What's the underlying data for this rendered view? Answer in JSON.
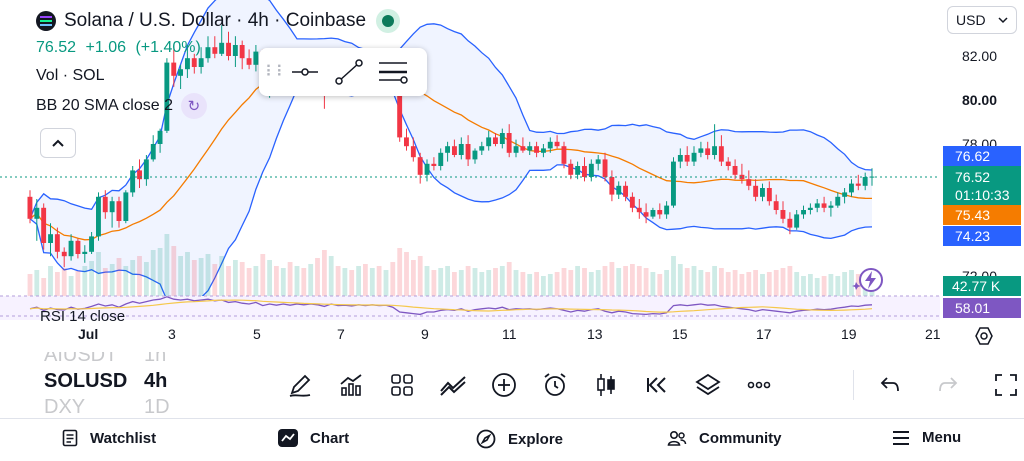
{
  "header": {
    "title": "Solana / U.S. Dollar · 4h · Coinbase",
    "last_price": "76.52",
    "change": "+1.06",
    "change_pct": "(+1.40%)",
    "volume_label": "Vol · SOL",
    "bb_label": "BB 20 SMA close 2"
  },
  "currency_select": {
    "value": "USD"
  },
  "price_axis": {
    "labels": [
      "82.00",
      "80.00",
      "78.00",
      "72.00"
    ],
    "tags": {
      "bb_upper": "76.62",
      "last": "76.52",
      "countdown": "01:10:33",
      "bb_basis": "75.43",
      "bb_lower": "74.23",
      "volume": "42.77 K",
      "rsi": "58.01"
    }
  },
  "rsi": {
    "label": "RSI 14 close"
  },
  "x_axis": {
    "labels": [
      "Jul",
      "3",
      "5",
      "7",
      "9",
      "11",
      "13",
      "15",
      "17",
      "19",
      "21"
    ]
  },
  "symbols": [
    {
      "symbol": "AIUSDT",
      "interval": "1h",
      "state": "dim"
    },
    {
      "symbol": "SOLUSD",
      "interval": "4h",
      "state": "active"
    },
    {
      "symbol": "DXY",
      "interval": "1D",
      "state": "dim"
    }
  ],
  "toolbar_icons": [
    "pencil-icon",
    "indicators-icon",
    "layout-grid-icon",
    "compare-icon",
    "add-icon",
    "alarm-icon",
    "candles-icon",
    "replay-icon",
    "layers-icon",
    "more-icon"
  ],
  "nav": {
    "watchlist": "Watchlist",
    "chart": "Chart",
    "explore": "Explore",
    "community": "Community",
    "menu": "Menu"
  },
  "colors": {
    "up": "#089981",
    "down": "#f23645",
    "bb_band": "#2962ff",
    "bb_basis": "#f57c00",
    "rsi": "#7e57c2"
  },
  "chart_data": {
    "type": "candlestick",
    "symbol": "SOLUSD",
    "interval": "4h",
    "candles": [
      [
        75.6,
        75.9,
        74.4,
        74.6
      ],
      [
        74.6,
        75.5,
        73.6,
        75.1
      ],
      [
        75.1,
        75.3,
        73.2,
        73.5
      ],
      [
        73.5,
        74.4,
        72.9,
        73.9
      ],
      [
        73.9,
        74.2,
        72.8,
        73.1
      ],
      [
        73.1,
        73.3,
        72.4,
        72.9
      ],
      [
        72.9,
        73.9,
        72.7,
        73.6
      ],
      [
        73.6,
        73.7,
        72.8,
        73.0
      ],
      [
        73.0,
        73.4,
        72.6,
        73.1
      ],
      [
        73.1,
        74.0,
        73.0,
        73.8
      ],
      [
        73.8,
        75.8,
        73.6,
        75.6
      ],
      [
        75.6,
        75.9,
        74.6,
        74.9
      ],
      [
        74.9,
        75.6,
        74.2,
        75.4
      ],
      [
        75.4,
        75.6,
        74.2,
        74.5
      ],
      [
        74.5,
        75.9,
        74.4,
        75.8
      ],
      [
        75.8,
        77.0,
        75.6,
        76.8
      ],
      [
        76.8,
        77.3,
        76.0,
        76.4
      ],
      [
        76.4,
        77.5,
        76.1,
        77.3
      ],
      [
        77.3,
        78.4,
        77.2,
        78.0
      ],
      [
        78.0,
        78.7,
        77.6,
        78.6
      ],
      [
        78.6,
        81.9,
        78.5,
        81.7
      ],
      [
        81.7,
        82.3,
        80.6,
        81.1
      ],
      [
        81.1,
        81.6,
        80.5,
        81.4
      ],
      [
        81.4,
        82.5,
        81.0,
        81.9
      ],
      [
        81.9,
        82.1,
        81.2,
        81.5
      ],
      [
        81.5,
        82.4,
        81.2,
        81.9
      ],
      [
        81.9,
        82.9,
        81.7,
        82.4
      ],
      [
        82.4,
        82.9,
        81.9,
        82.1
      ],
      [
        82.1,
        83.4,
        82.0,
        82.6
      ],
      [
        82.6,
        83.1,
        81.8,
        82.0
      ],
      [
        82.0,
        82.9,
        81.5,
        82.5
      ],
      [
        82.5,
        82.7,
        81.4,
        81.9
      ],
      [
        81.9,
        82.3,
        81.4,
        81.6
      ],
      [
        81.6,
        82.5,
        81.3,
        82.2
      ],
      [
        82.2,
        82.3,
        80.4,
        80.6
      ],
      [
        80.6,
        81.4,
        80.1,
        81.3
      ],
      [
        81.3,
        81.6,
        80.5,
        80.7
      ],
      [
        80.7,
        81.5,
        80.6,
        81.3
      ],
      [
        81.3,
        81.6,
        80.7,
        80.8
      ],
      [
        80.8,
        81.5,
        80.4,
        81.3
      ],
      [
        81.3,
        81.8,
        80.8,
        81.0
      ],
      [
        81.0,
        81.6,
        80.6,
        81.4
      ],
      [
        81.4,
        81.6,
        80.9,
        81.1
      ],
      [
        81.1,
        82.3,
        79.6,
        80.5
      ],
      [
        80.5,
        82.0,
        80.3,
        81.8
      ],
      [
        81.8,
        81.9,
        80.6,
        81.1
      ],
      [
        81.1,
        81.6,
        80.7,
        81.2
      ],
      [
        81.2,
        81.7,
        80.5,
        80.8
      ],
      [
        80.8,
        81.6,
        80.6,
        81.4
      ],
      [
        81.4,
        81.7,
        80.7,
        80.9
      ],
      [
        80.9,
        81.6,
        80.6,
        81.3
      ],
      [
        81.3,
        82.0,
        80.9,
        81.0
      ],
      [
        81.0,
        81.6,
        80.7,
        81.2
      ],
      [
        81.2,
        81.6,
        80.2,
        80.4
      ],
      [
        80.4,
        80.6,
        78.1,
        78.3
      ],
      [
        78.3,
        78.7,
        77.7,
        77.9
      ],
      [
        77.9,
        78.3,
        77.2,
        77.4
      ],
      [
        77.4,
        77.6,
        76.2,
        76.6
      ],
      [
        76.6,
        77.3,
        76.3,
        77.1
      ],
      [
        77.1,
        77.4,
        76.8,
        77.0
      ],
      [
        77.0,
        77.8,
        76.8,
        77.6
      ],
      [
        77.6,
        78.1,
        77.2,
        77.9
      ],
      [
        77.9,
        78.2,
        77.4,
        77.5
      ],
      [
        77.5,
        78.3,
        77.3,
        78.0
      ],
      [
        78.0,
        78.4,
        77.0,
        77.3
      ],
      [
        77.3,
        77.8,
        77.1,
        77.7
      ],
      [
        77.7,
        78.1,
        77.5,
        77.9
      ],
      [
        77.9,
        78.6,
        77.7,
        78.3
      ],
      [
        78.3,
        78.5,
        77.9,
        78.0
      ],
      [
        78.0,
        78.7,
        77.8,
        78.5
      ],
      [
        78.5,
        78.9,
        77.4,
        77.6
      ],
      [
        77.6,
        78.2,
        77.4,
        77.9
      ],
      [
        77.9,
        78.3,
        77.6,
        77.7
      ],
      [
        77.7,
        78.1,
        77.5,
        77.9
      ],
      [
        77.9,
        78.1,
        77.4,
        77.6
      ],
      [
        77.6,
        78.0,
        77.4,
        77.8
      ],
      [
        77.8,
        78.3,
        77.6,
        78.1
      ],
      [
        78.1,
        78.4,
        77.8,
        77.9
      ],
      [
        77.9,
        78.1,
        76.9,
        77.1
      ],
      [
        77.1,
        77.3,
        76.4,
        76.6
      ],
      [
        76.6,
        77.2,
        76.4,
        77.0
      ],
      [
        77.0,
        77.4,
        76.3,
        76.5
      ],
      [
        76.5,
        77.3,
        76.3,
        77.1
      ],
      [
        77.1,
        77.5,
        76.8,
        77.3
      ],
      [
        77.3,
        77.6,
        76.3,
        76.5
      ],
      [
        76.5,
        76.8,
        75.4,
        75.7
      ],
      [
        75.7,
        76.3,
        75.5,
        76.1
      ],
      [
        76.1,
        76.3,
        75.4,
        75.6
      ],
      [
        75.6,
        75.8,
        74.9,
        75.1
      ],
      [
        75.1,
        75.5,
        74.6,
        74.9
      ],
      [
        74.9,
        75.3,
        74.4,
        74.7
      ],
      [
        74.7,
        75.1,
        74.6,
        75.0
      ],
      [
        75.0,
        75.3,
        74.6,
        74.8
      ],
      [
        74.8,
        75.4,
        74.6,
        75.2
      ],
      [
        75.2,
        77.4,
        75.1,
        77.2
      ],
      [
        77.2,
        77.8,
        76.9,
        77.5
      ],
      [
        77.5,
        77.9,
        77.0,
        77.2
      ],
      [
        77.2,
        77.9,
        77.0,
        77.6
      ],
      [
        77.6,
        78.1,
        77.4,
        77.8
      ],
      [
        77.8,
        78.1,
        77.3,
        77.5
      ],
      [
        77.5,
        78.9,
        77.3,
        77.9
      ],
      [
        77.9,
        78.4,
        77.0,
        77.2
      ],
      [
        77.2,
        77.4,
        76.8,
        77.0
      ],
      [
        77.0,
        77.3,
        76.4,
        76.6
      ],
      [
        76.6,
        77.1,
        76.2,
        76.4
      ],
      [
        76.4,
        76.8,
        75.9,
        76.1
      ],
      [
        76.1,
        76.4,
        75.4,
        75.6
      ],
      [
        75.6,
        76.2,
        75.4,
        76.0
      ],
      [
        76.0,
        76.3,
        75.2,
        75.4
      ],
      [
        75.4,
        75.7,
        74.8,
        75.0
      ],
      [
        75.0,
        75.4,
        74.4,
        74.6
      ],
      [
        74.6,
        74.9,
        73.9,
        74.2
      ],
      [
        74.2,
        75.0,
        74.1,
        74.8
      ],
      [
        74.8,
        75.2,
        74.6,
        75.0
      ],
      [
        75.0,
        75.3,
        74.8,
        75.1
      ],
      [
        75.1,
        75.5,
        74.9,
        75.3
      ],
      [
        75.3,
        75.6,
        74.9,
        75.1
      ],
      [
        75.1,
        75.4,
        74.7,
        75.2
      ],
      [
        75.2,
        75.8,
        75.1,
        75.6
      ],
      [
        75.6,
        76.0,
        75.3,
        75.8
      ],
      [
        75.8,
        76.4,
        75.6,
        76.2
      ],
      [
        76.2,
        76.6,
        75.9,
        76.1
      ],
      [
        76.1,
        76.7,
        75.9,
        76.5
      ],
      [
        76.5,
        76.9,
        76.1,
        76.52
      ]
    ],
    "volume": [
      22,
      26,
      18,
      30,
      24,
      28,
      20,
      25,
      30,
      35,
      44,
      28,
      32,
      38,
      30,
      36,
      40,
      34,
      46,
      48,
      62,
      50,
      40,
      44,
      36,
      38,
      42,
      32,
      40,
      30,
      36,
      34,
      28,
      30,
      42,
      36,
      30,
      28,
      34,
      30,
      28,
      32,
      38,
      46,
      40,
      30,
      28,
      26,
      30,
      32,
      28,
      30,
      26,
      34,
      48,
      44,
      36,
      40,
      30,
      26,
      28,
      30,
      24,
      26,
      30,
      28,
      24,
      26,
      28,
      30,
      34,
      26,
      24,
      22,
      24,
      20,
      22,
      24,
      28,
      26,
      30,
      28,
      24,
      26,
      30,
      34,
      28,
      30,
      32,
      30,
      28,
      24,
      22,
      26,
      40,
      32,
      28,
      30,
      26,
      24,
      30,
      28,
      24,
      26,
      22,
      24,
      26,
      22,
      24,
      26,
      28,
      30,
      24,
      20,
      22,
      18,
      20,
      22,
      20,
      24,
      26,
      22,
      24,
      20
    ],
    "rsi": [
      48,
      52,
      44,
      50,
      46,
      45,
      52,
      47,
      49,
      54,
      60,
      55,
      58,
      52,
      60,
      66,
      62,
      66,
      70,
      72,
      78,
      72,
      70,
      72,
      68,
      70,
      72,
      68,
      70,
      64,
      66,
      62,
      60,
      64,
      56,
      60,
      57,
      60,
      57,
      60,
      58,
      60,
      58,
      54,
      60,
      56,
      57,
      55,
      58,
      56,
      58,
      56,
      57,
      52,
      40,
      38,
      36,
      34,
      40,
      40,
      44,
      46,
      44,
      48,
      42,
      46,
      48,
      50,
      48,
      52,
      46,
      48,
      47,
      48,
      46,
      48,
      50,
      48,
      44,
      40,
      44,
      42,
      46,
      48,
      42,
      38,
      42,
      40,
      36,
      35,
      34,
      36,
      35,
      38,
      56,
      58,
      56,
      58,
      60,
      57,
      58,
      54,
      52,
      50,
      48,
      46,
      42,
      46,
      44,
      42,
      40,
      38,
      42,
      44,
      45,
      47,
      46,
      47,
      50,
      52,
      55,
      54,
      57,
      58.01
    ],
    "ylim": [
      72.0,
      83.0
    ]
  }
}
